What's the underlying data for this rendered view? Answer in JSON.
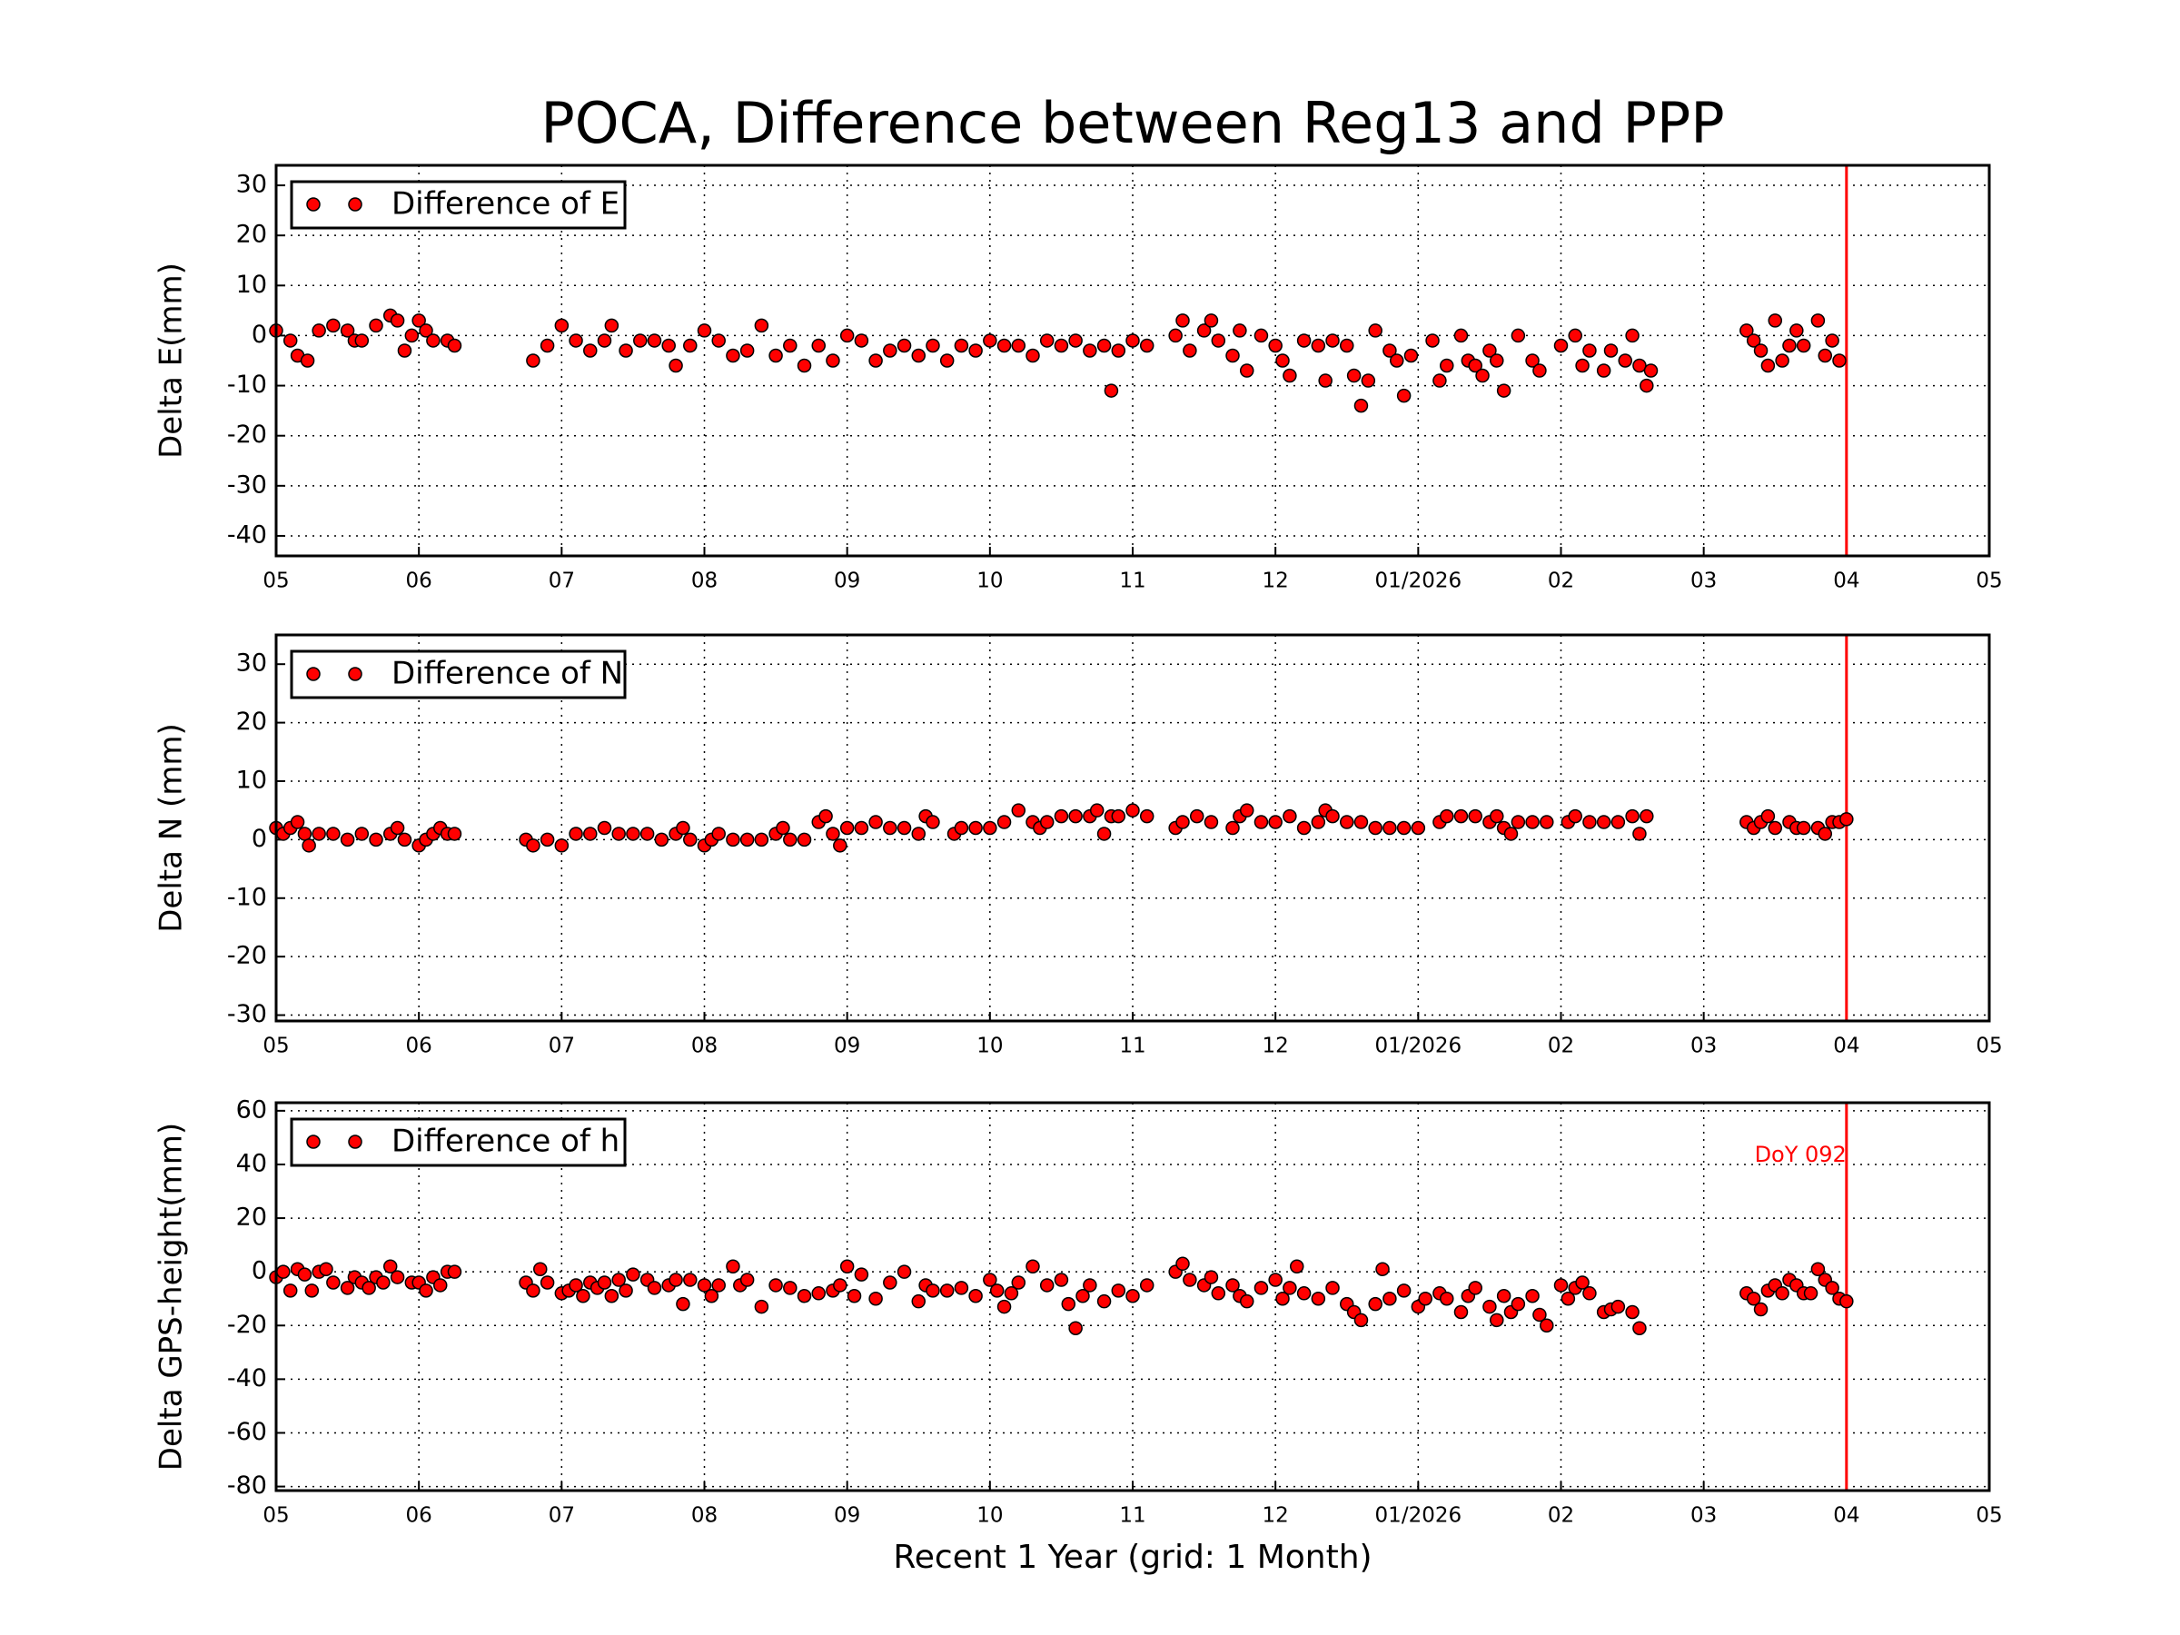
{
  "title": "POCA, Difference between Reg13 and PPP",
  "chart_data": [
    {
      "type": "scatter",
      "ylabel": "Delta E(mm)",
      "xlim": [
        0,
        12
      ],
      "ylim": [
        -44,
        34
      ],
      "xticks": [
        {
          "value": 0,
          "label": "05"
        },
        {
          "value": 1,
          "label": "06"
        },
        {
          "value": 2,
          "label": "07"
        },
        {
          "value": 3,
          "label": "08"
        },
        {
          "value": 4,
          "label": "09"
        },
        {
          "value": 5,
          "label": "10"
        },
        {
          "value": 6,
          "label": "11"
        },
        {
          "value": 7,
          "label": "12"
        },
        {
          "value": 8,
          "label": "01/2026"
        },
        {
          "value": 9,
          "label": "02"
        },
        {
          "value": 10,
          "label": "03"
        },
        {
          "value": 11,
          "label": "04"
        },
        {
          "value": 12,
          "label": "05"
        }
      ],
      "yticks": [
        -40,
        -30,
        -20,
        -10,
        0,
        10,
        20,
        30
      ],
      "grid": true,
      "legend": "upper left",
      "vline_x": 11,
      "vline_color": "#ff0000",
      "series": [
        {
          "name": "Difference of E",
          "color": "#ff0000",
          "x": [
            0.0,
            0.1,
            0.15,
            0.22,
            0.3,
            0.4,
            0.5,
            0.55,
            0.6,
            0.7,
            0.8,
            0.85,
            0.9,
            0.95,
            1.0,
            1.05,
            1.1,
            1.2,
            1.25,
            1.8,
            1.9,
            2.0,
            2.1,
            2.2,
            2.3,
            2.35,
            2.45,
            2.55,
            2.65,
            2.75,
            2.8,
            2.9,
            3.0,
            3.1,
            3.2,
            3.3,
            3.4,
            3.5,
            3.6,
            3.7,
            3.8,
            3.9,
            4.0,
            4.1,
            4.2,
            4.3,
            4.4,
            4.5,
            4.6,
            4.7,
            4.8,
            4.9,
            5.0,
            5.1,
            5.2,
            5.3,
            5.4,
            5.5,
            5.6,
            5.7,
            5.8,
            5.85,
            5.9,
            6.0,
            6.1,
            6.3,
            6.35,
            6.4,
            6.5,
            6.55,
            6.6,
            6.7,
            6.75,
            6.8,
            6.9,
            7.0,
            7.05,
            7.1,
            7.2,
            7.3,
            7.35,
            7.4,
            7.5,
            7.55,
            7.6,
            7.65,
            7.7,
            7.8,
            7.85,
            7.9,
            7.95,
            8.1,
            8.15,
            8.2,
            8.3,
            8.35,
            8.4,
            8.45,
            8.5,
            8.55,
            8.6,
            8.7,
            8.8,
            8.85,
            9.0,
            9.1,
            9.15,
            9.2,
            9.3,
            9.35,
            9.45,
            9.5,
            9.55,
            9.6,
            9.63,
            10.3,
            10.35,
            10.4,
            10.45,
            10.5,
            10.55,
            10.6,
            10.65,
            10.7,
            10.8,
            10.85,
            10.9,
            10.95
          ],
          "values": [
            1,
            -1,
            -4,
            -5,
            1,
            2,
            1,
            -1,
            -1,
            2,
            4,
            3,
            -3,
            0,
            3,
            1,
            -1,
            -1,
            -2,
            -5,
            -2,
            2,
            -1,
            -3,
            -1,
            2,
            -3,
            -1,
            -1,
            -2,
            -6,
            -2,
            1,
            -1,
            -4,
            -3,
            2,
            -4,
            -2,
            -6,
            -2,
            -5,
            0,
            -1,
            -5,
            -3,
            -2,
            -4,
            -2,
            -5,
            -2,
            -3,
            -1,
            -2,
            -2,
            -4,
            -1,
            -2,
            -1,
            -3,
            -2,
            -11,
            -3,
            -1,
            -2,
            0,
            3,
            -3,
            1,
            3,
            -1,
            -4,
            1,
            -7,
            0,
            -2,
            -5,
            -8,
            -1,
            -2,
            -9,
            -1,
            -2,
            -8,
            -14,
            -9,
            1,
            -3,
            -5,
            -12,
            -4,
            -1,
            -9,
            -6,
            0,
            -5,
            -6,
            -8,
            -3,
            -5,
            -11,
            0,
            -5,
            -7,
            -2,
            0,
            -6,
            -3,
            -7,
            -3,
            -5,
            0,
            -6,
            -10,
            -7,
            1,
            -1,
            -3,
            -6,
            3,
            -5,
            -2,
            1,
            -2,
            3,
            -4,
            -1,
            -5
          ]
        }
      ]
    },
    {
      "type": "scatter",
      "ylabel": "Delta N (mm)",
      "xlim": [
        0,
        12
      ],
      "ylim": [
        -31,
        35
      ],
      "xticks": [
        {
          "value": 0,
          "label": "05"
        },
        {
          "value": 1,
          "label": "06"
        },
        {
          "value": 2,
          "label": "07"
        },
        {
          "value": 3,
          "label": "08"
        },
        {
          "value": 4,
          "label": "09"
        },
        {
          "value": 5,
          "label": "10"
        },
        {
          "value": 6,
          "label": "11"
        },
        {
          "value": 7,
          "label": "12"
        },
        {
          "value": 8,
          "label": "01/2026"
        },
        {
          "value": 9,
          "label": "02"
        },
        {
          "value": 10,
          "label": "03"
        },
        {
          "value": 11,
          "label": "04"
        },
        {
          "value": 12,
          "label": "05"
        }
      ],
      "yticks": [
        -30,
        -20,
        -10,
        0,
        10,
        20,
        30
      ],
      "grid": true,
      "legend": "upper left",
      "vline_x": 11,
      "vline_color": "#ff0000",
      "series": [
        {
          "name": "Difference of N",
          "color": "#ff0000",
          "x": [
            0.0,
            0.05,
            0.1,
            0.15,
            0.2,
            0.23,
            0.3,
            0.4,
            0.5,
            0.6,
            0.7,
            0.8,
            0.85,
            0.9,
            1.0,
            1.05,
            1.1,
            1.15,
            1.2,
            1.25,
            1.75,
            1.8,
            1.9,
            2.0,
            2.1,
            2.2,
            2.3,
            2.4,
            2.5,
            2.6,
            2.7,
            2.8,
            2.85,
            2.9,
            3.0,
            3.05,
            3.1,
            3.2,
            3.3,
            3.4,
            3.5,
            3.55,
            3.6,
            3.7,
            3.8,
            3.85,
            3.9,
            3.95,
            4.0,
            4.1,
            4.2,
            4.3,
            4.4,
            4.5,
            4.55,
            4.6,
            4.75,
            4.8,
            4.9,
            5.0,
            5.1,
            5.2,
            5.3,
            5.35,
            5.4,
            5.5,
            5.6,
            5.7,
            5.75,
            5.8,
            5.85,
            5.9,
            6.0,
            6.1,
            6.3,
            6.35,
            6.45,
            6.55,
            6.7,
            6.75,
            6.8,
            6.9,
            7.0,
            7.1,
            7.2,
            7.3,
            7.35,
            7.4,
            7.5,
            7.6,
            7.7,
            7.8,
            7.9,
            8.0,
            8.15,
            8.2,
            8.3,
            8.4,
            8.5,
            8.55,
            8.6,
            8.65,
            8.7,
            8.8,
            8.9,
            9.05,
            9.1,
            9.2,
            9.3,
            9.4,
            9.5,
            9.55,
            9.6,
            10.3,
            10.35,
            10.4,
            10.45,
            10.5,
            10.6,
            10.65,
            10.7,
            10.8,
            10.85,
            10.9,
            10.95,
            11.0
          ],
          "values": [
            2,
            1,
            2,
            3,
            1,
            -1,
            1,
            1,
            0,
            1,
            0,
            1,
            2,
            0,
            -1,
            0,
            1,
            2,
            1,
            1,
            0,
            -1,
            0,
            -1,
            1,
            1,
            2,
            1,
            1,
            1,
            0,
            1,
            2,
            0,
            -1,
            0,
            1,
            0,
            0,
            0,
            1,
            2,
            0,
            0,
            3,
            4,
            1,
            -1,
            2,
            2,
            3,
            2,
            2,
            1,
            4,
            3,
            1,
            2,
            2,
            2,
            3,
            5,
            3,
            2,
            3,
            4,
            4,
            4,
            5,
            1,
            4,
            4,
            5,
            4,
            2,
            3,
            4,
            3,
            2,
            4,
            5,
            3,
            3,
            4,
            2,
            3,
            5,
            4,
            3,
            3,
            2,
            2,
            2,
            2,
            3,
            4,
            4,
            4,
            3,
            4,
            2,
            1,
            3,
            3,
            3,
            3,
            4,
            3,
            3,
            3,
            4,
            1,
            4,
            3,
            2,
            3,
            4,
            2,
            3,
            2,
            2,
            2,
            1,
            3,
            3,
            3.5
          ]
        }
      ]
    },
    {
      "type": "scatter",
      "ylabel": "Delta GPS-height(mm)",
      "xlabel": "Recent 1 Year (grid: 1 Month)",
      "annotation": "DoY 092",
      "xlim": [
        0,
        12
      ],
      "ylim": [
        -81.5,
        63
      ],
      "xticks": [
        {
          "value": 0,
          "label": "05"
        },
        {
          "value": 1,
          "label": "06"
        },
        {
          "value": 2,
          "label": "07"
        },
        {
          "value": 3,
          "label": "08"
        },
        {
          "value": 4,
          "label": "09"
        },
        {
          "value": 5,
          "label": "10"
        },
        {
          "value": 6,
          "label": "11"
        },
        {
          "value": 7,
          "label": "12"
        },
        {
          "value": 8,
          "label": "01/2026"
        },
        {
          "value": 9,
          "label": "02"
        },
        {
          "value": 10,
          "label": "03"
        },
        {
          "value": 11,
          "label": "04"
        },
        {
          "value": 12,
          "label": "05"
        }
      ],
      "yticks": [
        -80,
        -60,
        -40,
        -20,
        0,
        20,
        40,
        60
      ],
      "grid": true,
      "legend": "upper left",
      "vline_x": 11,
      "vline_color": "#ff0000",
      "series": [
        {
          "name": "Difference of h",
          "color": "#ff0000",
          "x": [
            0.0,
            0.05,
            0.1,
            0.15,
            0.2,
            0.25,
            0.3,
            0.35,
            0.4,
            0.5,
            0.55,
            0.6,
            0.65,
            0.7,
            0.75,
            0.8,
            0.85,
            0.95,
            1.0,
            1.05,
            1.1,
            1.15,
            1.2,
            1.25,
            1.75,
            1.8,
            1.85,
            1.9,
            2.0,
            2.05,
            2.1,
            2.15,
            2.2,
            2.25,
            2.3,
            2.35,
            2.4,
            2.45,
            2.5,
            2.6,
            2.65,
            2.75,
            2.8,
            2.85,
            2.9,
            3.0,
            3.05,
            3.1,
            3.2,
            3.25,
            3.3,
            3.4,
            3.5,
            3.6,
            3.7,
            3.8,
            3.9,
            3.95,
            4.0,
            4.05,
            4.1,
            4.2,
            4.3,
            4.4,
            4.5,
            4.55,
            4.6,
            4.7,
            4.8,
            4.9,
            5.0,
            5.05,
            5.1,
            5.15,
            5.2,
            5.3,
            5.4,
            5.5,
            5.55,
            5.6,
            5.65,
            5.7,
            5.8,
            5.9,
            6.0,
            6.1,
            6.3,
            6.35,
            6.4,
            6.5,
            6.55,
            6.6,
            6.7,
            6.75,
            6.8,
            6.9,
            7.0,
            7.05,
            7.1,
            7.15,
            7.2,
            7.3,
            7.4,
            7.5,
            7.55,
            7.6,
            7.7,
            7.75,
            7.8,
            7.9,
            8.0,
            8.05,
            8.15,
            8.2,
            8.3,
            8.35,
            8.4,
            8.5,
            8.55,
            8.6,
            8.65,
            8.7,
            8.8,
            8.85,
            8.9,
            9.0,
            9.05,
            9.1,
            9.15,
            9.2,
            9.3,
            9.35,
            9.4,
            9.5,
            9.55,
            10.3,
            10.35,
            10.4,
            10.45,
            10.5,
            10.55,
            10.6,
            10.65,
            10.7,
            10.75,
            10.8,
            10.85,
            10.9,
            10.95,
            11.0
          ],
          "values": [
            -2,
            0,
            -7,
            1,
            -1,
            -7,
            0,
            1,
            -4,
            -6,
            -2,
            -4,
            -6,
            -2,
            -4,
            2,
            -2,
            -4,
            -4,
            -7,
            -2,
            -5,
            0,
            0,
            -4,
            -7,
            1,
            -4,
            -8,
            -7,
            -5,
            -9,
            -4,
            -6,
            -4,
            -9,
            -3,
            -7,
            -1,
            -3,
            -6,
            -5,
            -3,
            -12,
            -3,
            -5,
            -9,
            -5,
            2,
            -5,
            -3,
            -13,
            -5,
            -6,
            -9,
            -8,
            -7,
            -5,
            2,
            -9,
            -1,
            -10,
            -4,
            0,
            -11,
            -5,
            -7,
            -7,
            -6,
            -9,
            -3,
            -7,
            -13,
            -8,
            -4,
            2,
            -5,
            -3,
            -12,
            -21,
            -9,
            -5,
            -11,
            -7,
            -9,
            -5,
            0,
            3,
            -3,
            -5,
            -2,
            -8,
            -5,
            -9,
            -11,
            -6,
            -3,
            -10,
            -6,
            2,
            -8,
            -10,
            -6,
            -12,
            -15,
            -18,
            -12,
            1,
            -10,
            -7,
            -13,
            -10,
            -8,
            -10,
            -15,
            -9,
            -6,
            -13,
            -18,
            -9,
            -15,
            -12,
            -9,
            -16,
            -20,
            -5,
            -10,
            -6,
            -4,
            -8,
            -15,
            -14,
            -13,
            -15,
            -21,
            -8,
            -10,
            -14,
            -7,
            -5,
            -8,
            -3,
            -5,
            -8,
            -8,
            1,
            -3,
            -6,
            -10,
            -11
          ]
        }
      ]
    }
  ]
}
